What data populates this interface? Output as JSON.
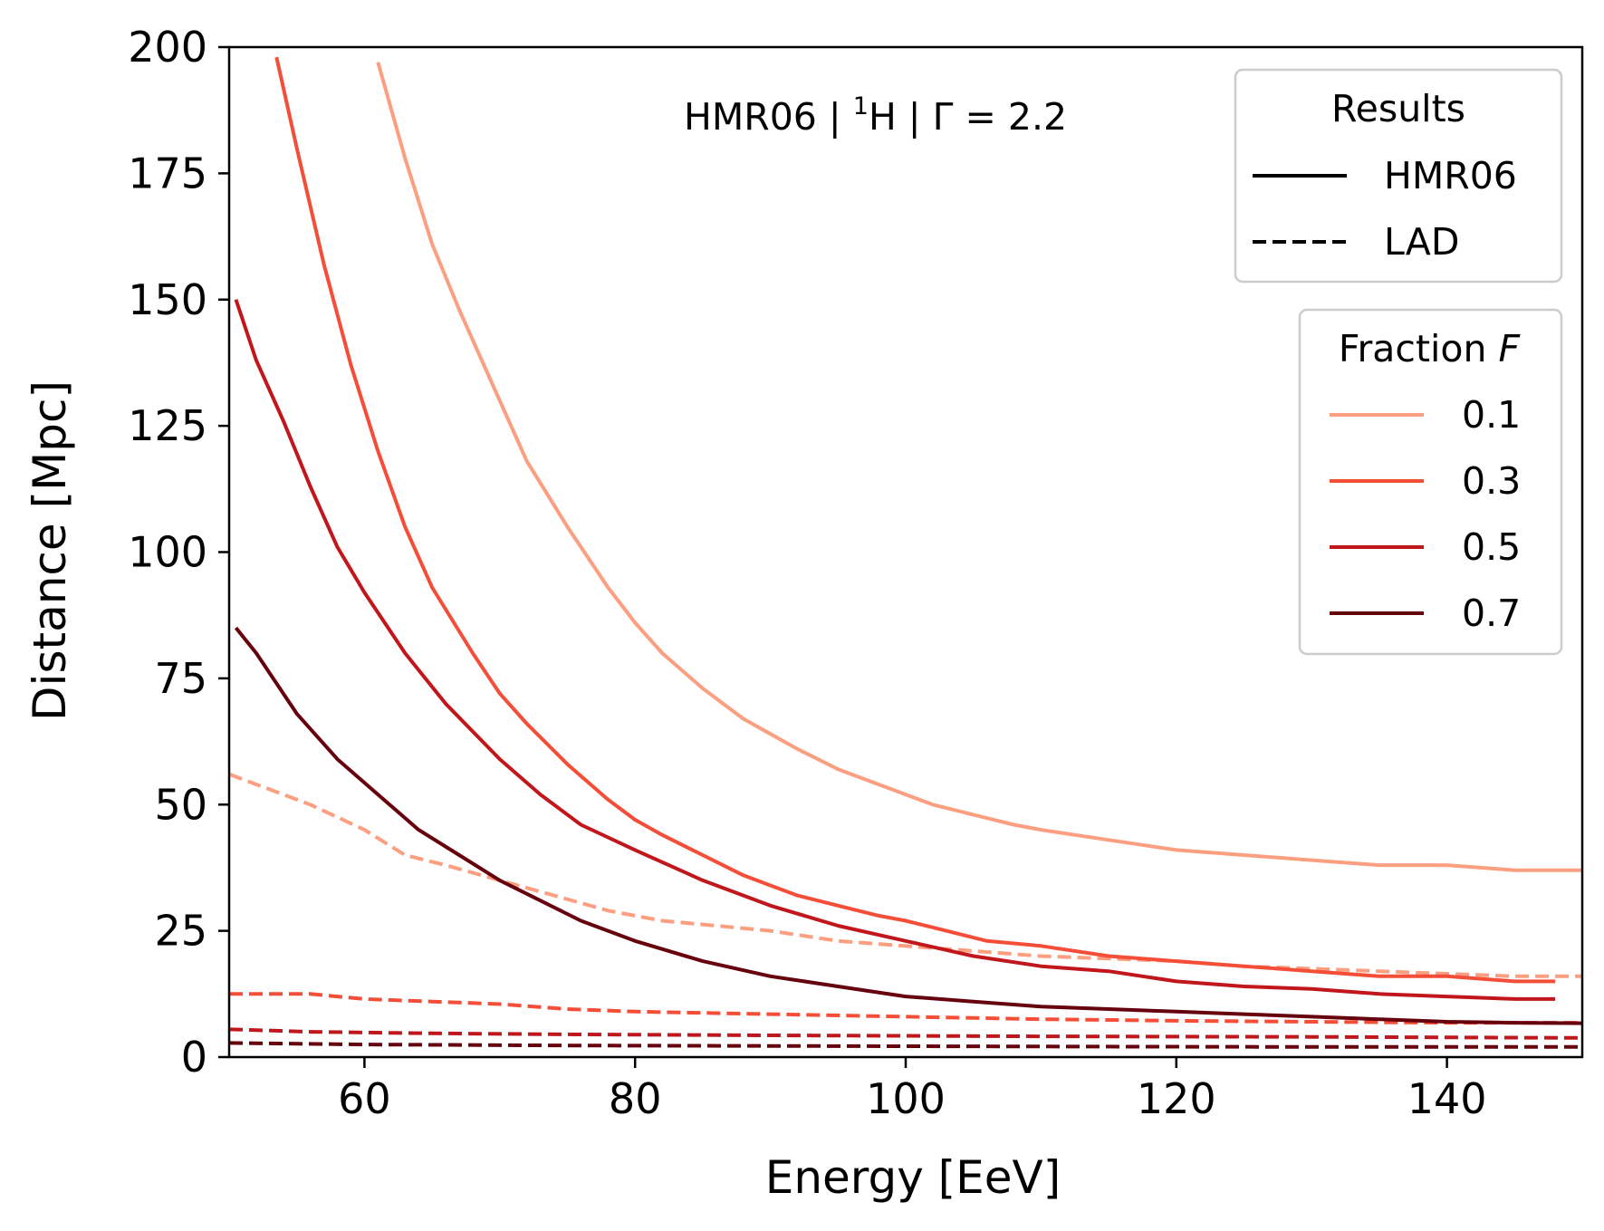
{
  "chart_data": {
    "type": "line",
    "title": "",
    "annotation": {
      "prefix": "HMR06 | ",
      "sup": "1",
      "suffix": "H | Γ = 2.2"
    },
    "xlabel": "Energy [EeV]",
    "ylabel": "Distance [Mpc]",
    "xlim": [
      50,
      150
    ],
    "ylim": [
      0,
      200
    ],
    "xticks": [
      60,
      80,
      100,
      120,
      140
    ],
    "yticks": [
      0,
      25,
      50,
      75,
      100,
      125,
      150,
      175,
      200
    ],
    "grid": false,
    "legend_results": {
      "title": "Results",
      "placement": "top-right",
      "entries": [
        {
          "label": "HMR06",
          "style": "solid"
        },
        {
          "label": "LAD",
          "style": "dashed"
        }
      ]
    },
    "legend_fraction": {
      "title_prefix": "Fraction ",
      "title_var": "F",
      "placement": "right",
      "entries": [
        {
          "label": "0.1",
          "color": "#fc9f81"
        },
        {
          "label": "0.3",
          "color": "#f44d38"
        },
        {
          "label": "0.5",
          "color": "#c1161b"
        },
        {
          "label": "0.7",
          "color": "#67000d"
        }
      ]
    },
    "series": [
      {
        "fraction": "0.1",
        "method": "HMR06",
        "color": "#fc9f81",
        "style": "solid",
        "x": [
          61,
          63,
          65,
          67,
          70,
          72,
          75,
          78,
          80,
          82,
          85,
          88,
          90,
          92,
          95,
          98,
          100,
          102,
          105,
          108,
          110,
          115,
          120,
          125,
          130,
          135,
          140,
          145,
          150
        ],
        "y": [
          197,
          178,
          161,
          148,
          130,
          118,
          105,
          93,
          86,
          80,
          73,
          67,
          64,
          61,
          57,
          54,
          52,
          50,
          48,
          46,
          45,
          43,
          41,
          40,
          39,
          38,
          38,
          37,
          37
        ]
      },
      {
        "fraction": "0.3",
        "method": "HMR06",
        "color": "#f44d38",
        "style": "solid",
        "x": [
          53.5,
          55,
          57,
          59,
          61,
          63,
          65,
          68,
          70,
          72,
          75,
          78,
          80,
          82,
          85,
          88,
          90,
          92,
          95,
          98,
          100,
          103,
          106,
          110,
          115,
          120,
          125,
          130,
          135,
          140,
          145,
          148
        ],
        "y": [
          198,
          180,
          157,
          137,
          120,
          105,
          93,
          80,
          72,
          66,
          58,
          51,
          47,
          44,
          40,
          36,
          34,
          32,
          30,
          28,
          27,
          25,
          23,
          22,
          20,
          19,
          18,
          17,
          16,
          16,
          15,
          15
        ]
      },
      {
        "fraction": "0.5",
        "method": "HMR06",
        "color": "#c1161b",
        "style": "solid",
        "x": [
          50.5,
          52,
          54,
          56,
          58,
          60,
          63,
          66,
          70,
          73,
          76,
          80,
          85,
          90,
          95,
          100,
          105,
          110,
          115,
          120,
          125,
          130,
          135,
          140,
          145,
          148
        ],
        "y": [
          150,
          138,
          126,
          113,
          101,
          92,
          80,
          70,
          59,
          52,
          46,
          41,
          35,
          30,
          26,
          23,
          20,
          18,
          17,
          15,
          14,
          13.5,
          12.5,
          12,
          11.5,
          11.5
        ]
      },
      {
        "fraction": "0.7",
        "method": "HMR06",
        "color": "#67000d",
        "style": "solid",
        "x": [
          50.5,
          52,
          55,
          58,
          61,
          64,
          67,
          70,
          73,
          76,
          80,
          85,
          90,
          95,
          100,
          105,
          110,
          115,
          120,
          125,
          130,
          135,
          140,
          145,
          150
        ],
        "y": [
          85,
          80,
          68,
          59,
          52,
          45,
          40,
          35,
          31,
          27,
          23,
          19,
          16,
          14,
          12,
          11,
          10,
          9.5,
          9,
          8.5,
          8,
          7.5,
          7,
          6.8,
          6.7
        ]
      },
      {
        "fraction": "0.1",
        "method": "LAD",
        "color": "#fc9f81",
        "style": "dashed",
        "x": [
          50,
          53,
          56,
          60,
          63,
          66,
          70,
          74,
          78,
          82,
          86,
          90,
          95,
          100,
          105,
          110,
          115,
          120,
          125,
          130,
          135,
          140,
          145,
          150
        ],
        "y": [
          56,
          53,
          50,
          45,
          40,
          38,
          35,
          32,
          29,
          27,
          26,
          25,
          23,
          22,
          21,
          20,
          19.5,
          19,
          18,
          17.5,
          17,
          16.5,
          16,
          16
        ]
      },
      {
        "fraction": "0.3",
        "method": "LAD",
        "color": "#f44d38",
        "style": "dashed",
        "x": [
          50,
          56,
          60,
          65,
          70,
          75,
          80,
          90,
          100,
          110,
          120,
          130,
          140,
          150
        ],
        "y": [
          12.5,
          12.5,
          11.5,
          11,
          10.5,
          9.5,
          9,
          8.5,
          8,
          7.5,
          7.2,
          7,
          6.8,
          6.8
        ]
      },
      {
        "fraction": "0.5",
        "method": "LAD",
        "color": "#c1161b",
        "style": "dashed",
        "x": [
          50,
          56,
          65,
          75,
          90,
          110,
          130,
          150
        ],
        "y": [
          5.5,
          5,
          4.7,
          4.5,
          4.3,
          4.1,
          4,
          3.8
        ]
      },
      {
        "fraction": "0.7",
        "method": "LAD",
        "color": "#67000d",
        "style": "dashed",
        "x": [
          50,
          60,
          75,
          90,
          110,
          130,
          150
        ],
        "y": [
          2.8,
          2.5,
          2.3,
          2.2,
          2.1,
          2.0,
          2.0
        ]
      }
    ]
  }
}
